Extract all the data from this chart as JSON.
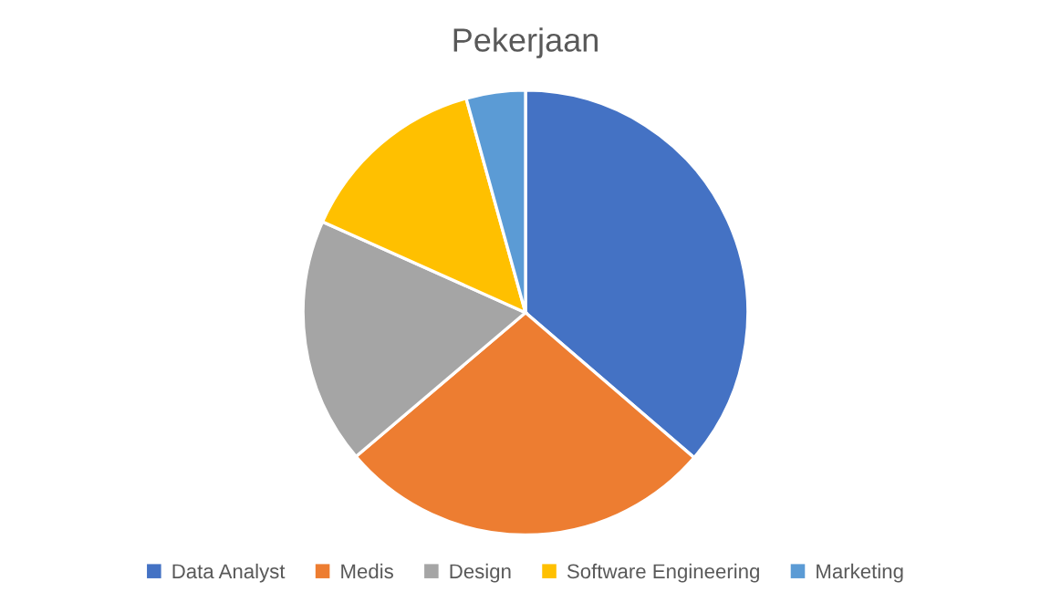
{
  "chart_data": {
    "type": "pie",
    "title": "Pekerjaan",
    "categories": [
      "Data Analyst",
      "Medis",
      "Design",
      "Software Engineering",
      "Marketing"
    ],
    "values": [
      36.3,
      27.5,
      17.9,
      14.0,
      4.3
    ],
    "colors": [
      "#4472c4",
      "#ed7d31",
      "#a5a5a5",
      "#ffc000",
      "#5b9bd5"
    ],
    "legend": "bottom"
  }
}
